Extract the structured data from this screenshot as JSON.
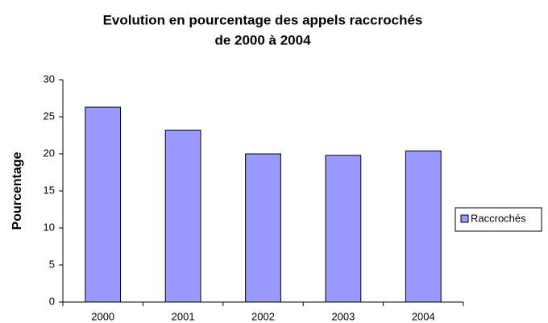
{
  "chart_data": {
    "type": "bar",
    "title": [
      "Evolution en pourcentage des appels raccrochés",
      "de 2000 à 2004"
    ],
    "y_label": "Pourcentage",
    "categories": [
      "2000",
      "2001",
      "2002",
      "2003",
      "2004"
    ],
    "series": [
      {
        "name": "Raccrochés",
        "color": "#9999ff",
        "values": [
          26.3,
          23.2,
          20.0,
          19.8,
          20.4
        ]
      }
    ],
    "ylim": [
      0,
      30
    ],
    "yticks": [
      0,
      5,
      10,
      15,
      20,
      25,
      30
    ],
    "grid": false,
    "legend": "right"
  }
}
